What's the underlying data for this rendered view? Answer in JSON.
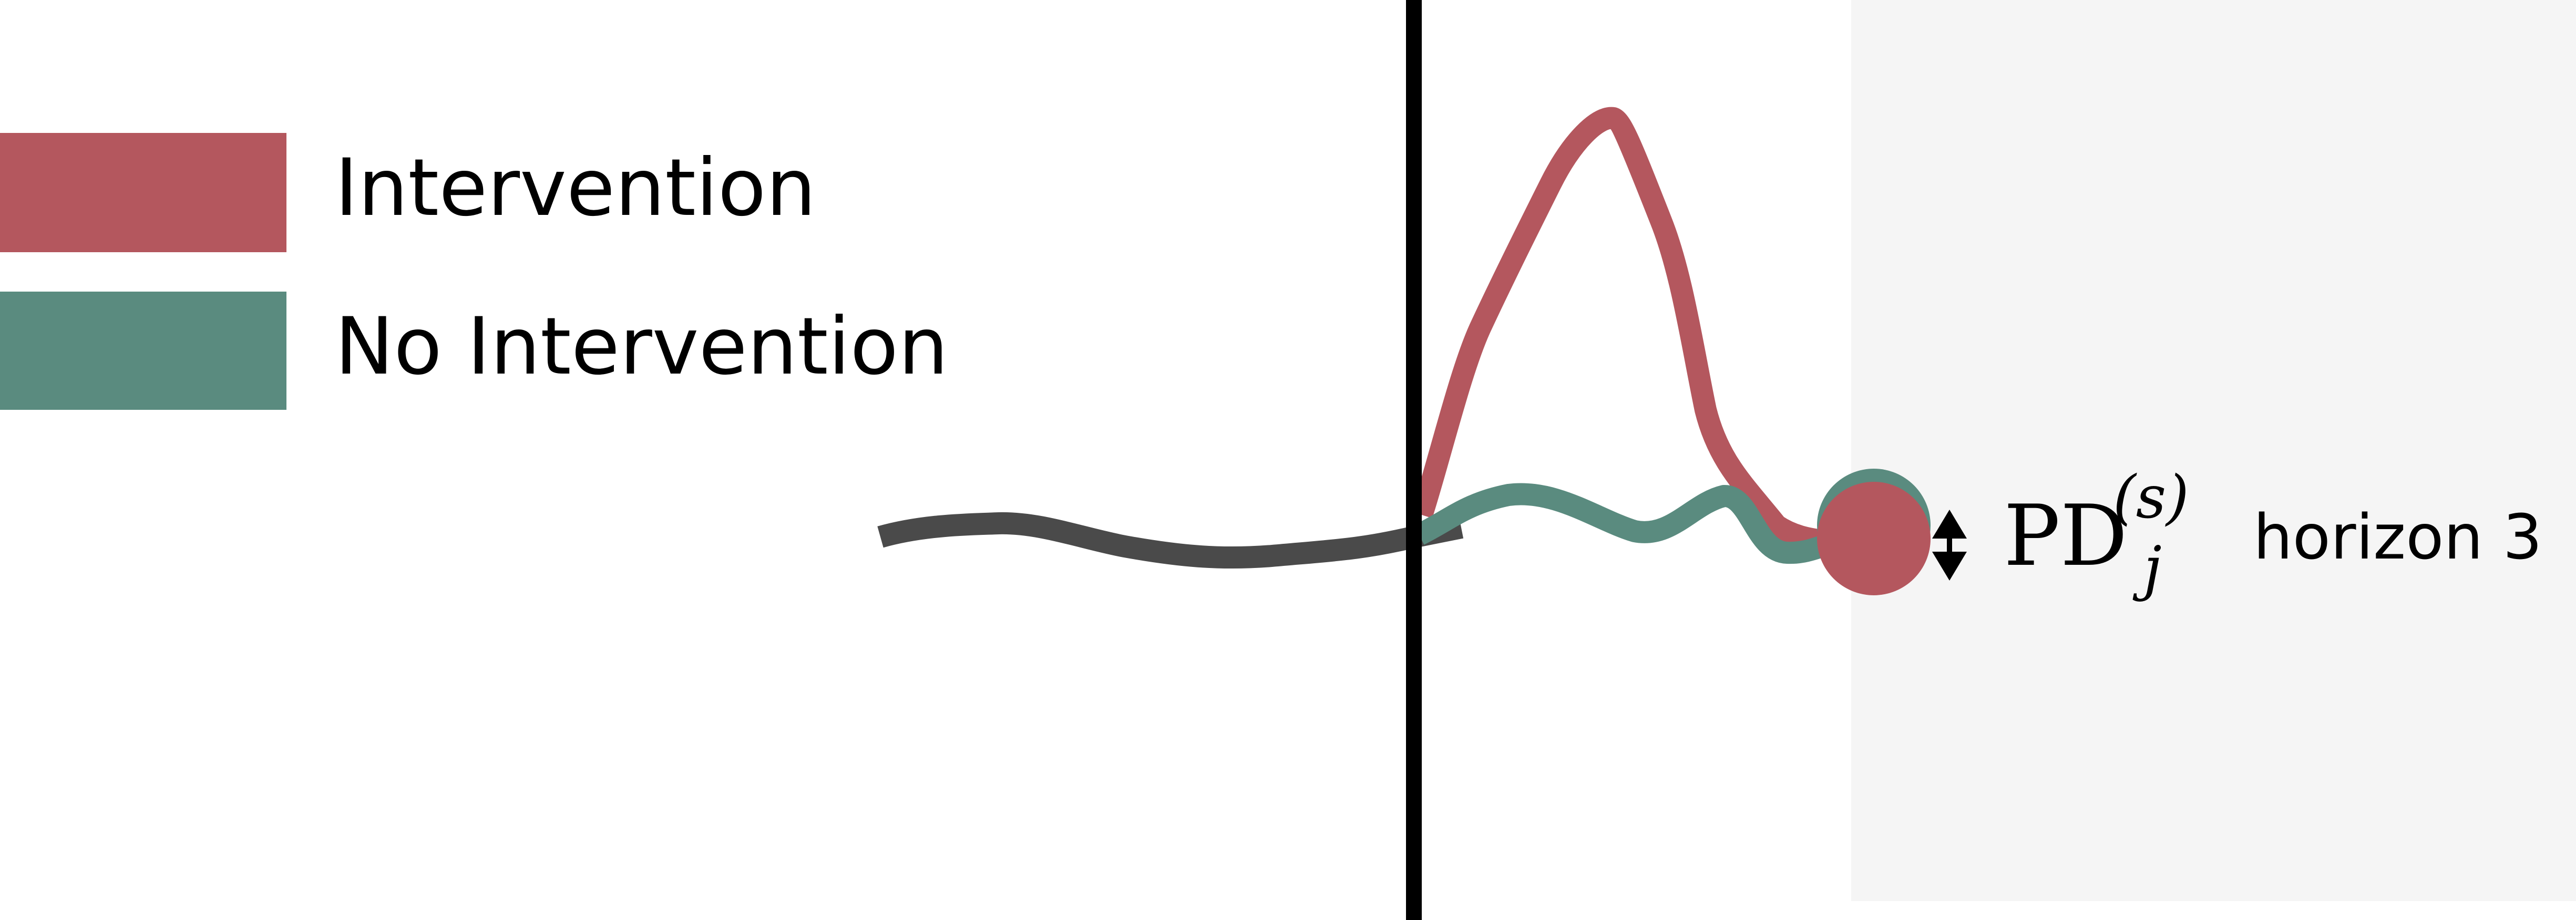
{
  "legend": {
    "items": [
      {
        "label": "Intervention",
        "color": "#b4575e"
      },
      {
        "label": "No Intervention",
        "color": "#5a8b7f"
      }
    ]
  },
  "colors": {
    "history_line": "#4a4a4a",
    "divider_line": "#000000",
    "forecast_region": "#f5f5f5"
  },
  "annotation": {
    "symbol_main": "PD",
    "symbol_subscript": "j",
    "symbol_superscript": "(s)",
    "horizon_label": "horizon 3"
  }
}
